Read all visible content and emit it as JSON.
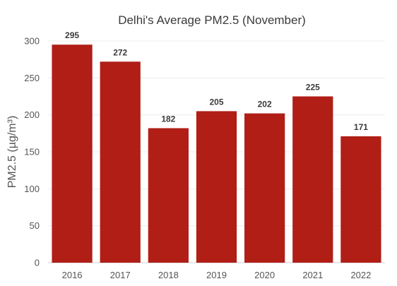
{
  "chart_data": {
    "type": "bar",
    "title": "Delhi's Average PM2.5 (November)",
    "xlabel": "",
    "ylabel": "PM2.5 (µg/m³)",
    "categories": [
      "2016",
      "2017",
      "2018",
      "2019",
      "2020",
      "2021",
      "2022"
    ],
    "values": [
      295,
      272,
      182,
      205,
      202,
      225,
      171
    ],
    "ylim": [
      0,
      300
    ],
    "yticks": [
      0,
      50,
      100,
      150,
      200,
      250,
      300
    ],
    "grid": true,
    "legend": "none",
    "colors": {
      "bar": "#b01e16"
    }
  }
}
